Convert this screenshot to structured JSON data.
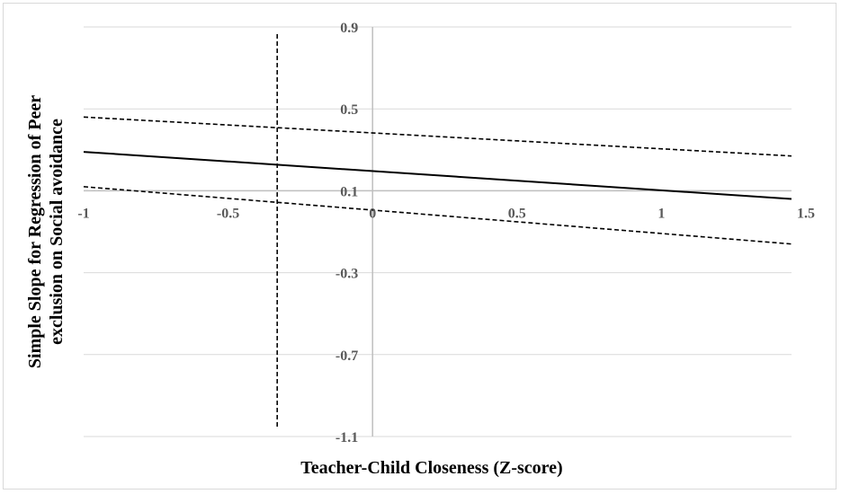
{
  "chart_data": {
    "type": "line",
    "title": "",
    "xlabel": "Teacher-Child Closeness  (Z-score)",
    "ylabel_lines": [
      "Simple Slope for Regression of Peer",
      "exclusion on Social avoidance"
    ],
    "xlim": [
      -1,
      1.5
    ],
    "ylim": [
      -1.1,
      0.9
    ],
    "x_ticks": [
      -1,
      -0.5,
      0,
      0.5,
      1,
      1.5
    ],
    "x_tick_labels": [
      "-1",
      "-0.5",
      "0",
      "0.5",
      "1",
      "1.5"
    ],
    "y_ticks": [
      0.9,
      0.5,
      0.1,
      -0.3,
      -0.7,
      -1.1
    ],
    "y_tick_labels": [
      "0.9",
      "0.5",
      "0.1",
      "-0.3",
      "-0.7",
      "-1.1"
    ],
    "x_axis_crosses_y_at": 0.1,
    "grid": "horizontal",
    "legend": "none",
    "series": [
      {
        "style": "solid",
        "x": [
          -1,
          1.45
        ],
        "values": [
          0.29,
          0.06
        ]
      },
      {
        "style": "dashed",
        "x": [
          -1,
          1.45
        ],
        "values": [
          0.46,
          0.27
        ]
      },
      {
        "style": "dashed",
        "x": [
          -1,
          1.45
        ],
        "values": [
          0.12,
          -0.16
        ]
      }
    ],
    "vertical_reference_line": {
      "style": "dashed",
      "x": -0.33
    },
    "colors": {
      "lines": "#000000",
      "grid": "#d9d9d9",
      "zero_axis": "#bfbfbf",
      "tick_text": "#595959"
    }
  }
}
